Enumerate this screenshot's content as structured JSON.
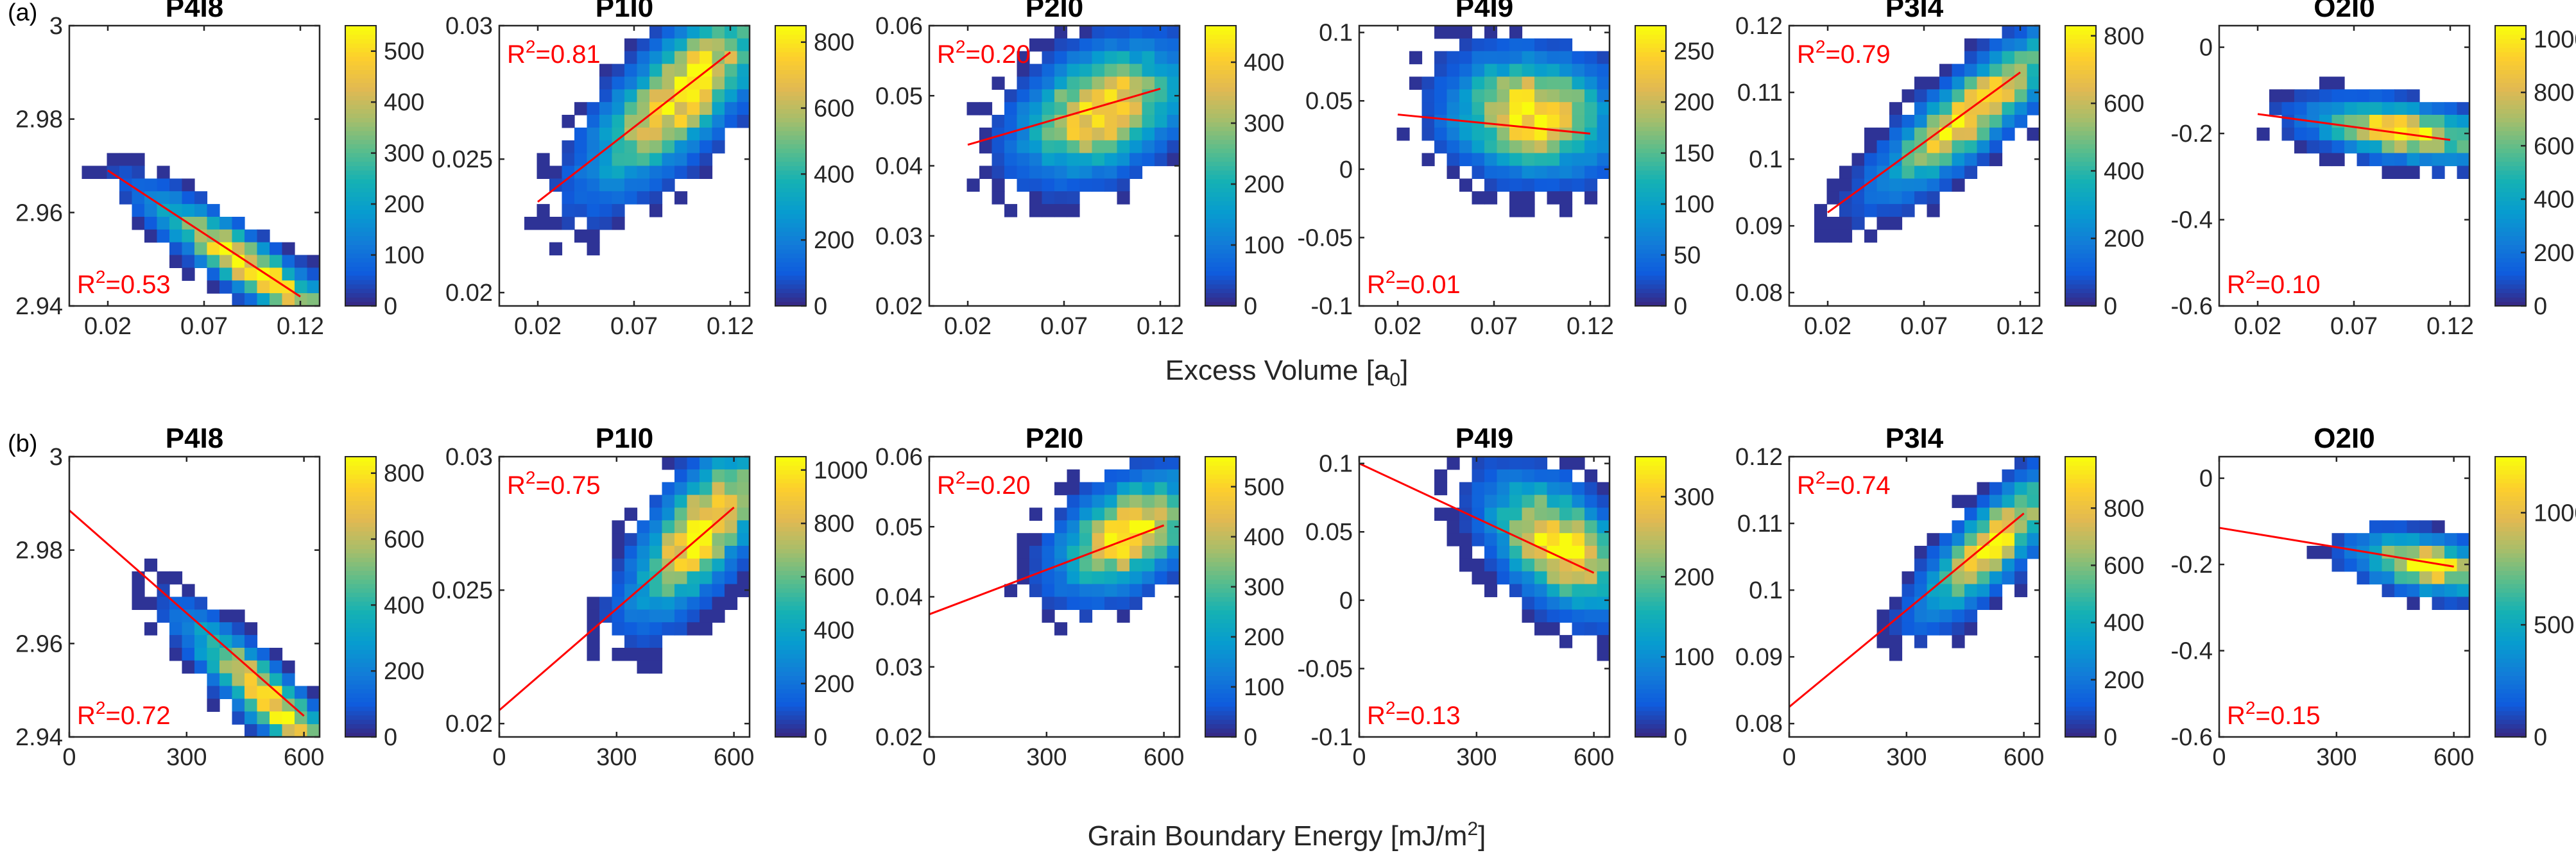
{
  "panel_labels": [
    "(a)",
    "(b)"
  ],
  "rows": [
    {
      "xlabel": "Excess Volume [a",
      "xlabel_sub": "0",
      "xlabel_tail": "]",
      "xlim": [
        0.0,
        0.13
      ],
      "xticks": [
        0.02,
        0.07,
        0.12
      ],
      "xtick_labels": [
        "0.02",
        "0.07",
        "0.12"
      ]
    },
    {
      "xlabel": "Grain Boundary Energy [mJ/m",
      "xlabel_sup": "2",
      "xlabel_tail": "]",
      "xlim": [
        0,
        640
      ],
      "xticks": [
        0,
        300,
        600
      ],
      "xtick_labels": [
        "0",
        "300",
        "600"
      ]
    }
  ],
  "chart_data": [
    {
      "type": "heatmap",
      "row": 0,
      "title": "P4I8",
      "ylim": [
        2.94,
        3.0
      ],
      "yticks": [
        2.94,
        2.96,
        2.98,
        3.0
      ],
      "ytick_labels": [
        "2.94",
        "2.96",
        "2.98",
        "3"
      ],
      "r2_label": "R",
      "r2_value": "=0.53",
      "r2_pos": "bottom-left",
      "colorbar": {
        "max": 550,
        "ticks": [
          0,
          100,
          200,
          300,
          400,
          500
        ],
        "tick_labels": [
          "0",
          "100",
          "200",
          "300",
          "400",
          "500"
        ]
      },
      "fit": {
        "x": [
          0.02,
          0.12
        ],
        "y": [
          2.969,
          2.942
        ]
      },
      "peak": [
        0.095,
        2.948
      ],
      "spread": [
        0.05,
        0.006
      ],
      "slope": -0.27
    },
    {
      "type": "heatmap",
      "row": 0,
      "title": "P1I0",
      "ylim": [
        0.0195,
        0.03
      ],
      "yticks": [
        0.02,
        0.025,
        0.03
      ],
      "ytick_labels": [
        "0.02",
        "0.025",
        "0.03"
      ],
      "r2_label": "R",
      "r2_value": "=0.81",
      "r2_pos": "top-left",
      "colorbar": {
        "max": 850,
        "ticks": [
          0,
          200,
          400,
          600,
          800
        ],
        "tick_labels": [
          "0",
          "200",
          "400",
          "600",
          "800"
        ]
      },
      "fit": {
        "x": [
          0.02,
          0.12
        ],
        "y": [
          0.0234,
          0.029
        ]
      },
      "peak": [
        0.095,
        0.0275
      ],
      "spread": [
        0.045,
        0.0022
      ],
      "slope": 0.056
    },
    {
      "type": "heatmap",
      "row": 0,
      "title": "P2I0",
      "ylim": [
        0.02,
        0.06
      ],
      "yticks": [
        0.02,
        0.03,
        0.04,
        0.05,
        0.06
      ],
      "ytick_labels": [
        "0.02",
        "0.03",
        "0.04",
        "0.05",
        "0.06"
      ],
      "r2_label": "R",
      "r2_value": "=0.20",
      "r2_pos": "top-left",
      "colorbar": {
        "max": 460,
        "ticks": [
          0,
          100,
          200,
          300,
          400
        ],
        "tick_labels": [
          "0",
          "100",
          "200",
          "300",
          "400"
        ]
      },
      "fit": {
        "x": [
          0.02,
          0.12
        ],
        "y": [
          0.043,
          0.051
        ]
      },
      "peak": [
        0.09,
        0.048
      ],
      "spread": [
        0.04,
        0.008
      ],
      "slope": 0.08
    },
    {
      "type": "heatmap",
      "row": 0,
      "title": "P4I9",
      "ylim": [
        -0.1,
        0.105
      ],
      "yticks": [
        -0.1,
        -0.05,
        0.0,
        0.05,
        0.1
      ],
      "ytick_labels": [
        "-0.1",
        "-0.05",
        "0",
        "0.05",
        "0.1"
      ],
      "r2_label": "R",
      "r2_value": "=0.01",
      "r2_pos": "bottom-left",
      "colorbar": {
        "max": 275,
        "ticks": [
          0,
          50,
          100,
          150,
          200,
          250
        ],
        "tick_labels": [
          "0",
          "50",
          "100",
          "150",
          "200",
          "250"
        ]
      },
      "fit": {
        "x": [
          0.02,
          0.12
        ],
        "y": [
          0.04,
          0.026
        ]
      },
      "peak": [
        0.09,
        0.04
      ],
      "spread": [
        0.04,
        0.04
      ],
      "slope": -0.1
    },
    {
      "type": "heatmap",
      "row": 0,
      "title": "P3I4",
      "ylim": [
        0.078,
        0.12
      ],
      "yticks": [
        0.08,
        0.09,
        0.1,
        0.11,
        0.12
      ],
      "ytick_labels": [
        "0.08",
        "0.09",
        "0.1",
        "0.11",
        "0.12"
      ],
      "r2_label": "R",
      "r2_value": "=0.79",
      "r2_pos": "top-left",
      "colorbar": {
        "max": 830,
        "ticks": [
          0,
          200,
          400,
          600,
          800
        ],
        "tick_labels": [
          "0",
          "200",
          "400",
          "600",
          "800"
        ]
      },
      "fit": {
        "x": [
          0.02,
          0.12
        ],
        "y": [
          0.092,
          0.113
        ]
      },
      "peak": [
        0.095,
        0.107
      ],
      "spread": [
        0.045,
        0.006
      ],
      "slope": 0.21
    },
    {
      "type": "heatmap",
      "row": 0,
      "title": "O2I0",
      "ylim": [
        -0.6,
        0.05
      ],
      "yticks": [
        -0.6,
        -0.4,
        -0.2,
        0.0
      ],
      "ytick_labels": [
        "-0.6",
        "-0.4",
        "-0.2",
        "0"
      ],
      "r2_label": "R",
      "r2_value": "=0.10",
      "r2_pos": "bottom-left",
      "colorbar": {
        "max": 1050,
        "ticks": [
          0,
          200,
          400,
          600,
          800,
          1000
        ],
        "tick_labels": [
          "0",
          "200",
          "400",
          "600",
          "800",
          "1000"
        ]
      },
      "fit": {
        "x": [
          0.02,
          0.12
        ],
        "y": [
          -0.155,
          -0.215
        ]
      },
      "peak": [
        0.095,
        -0.195
      ],
      "spread": [
        0.045,
        0.06
      ],
      "slope": -0.6
    },
    {
      "type": "heatmap",
      "row": 1,
      "title": "P4I8",
      "ylim": [
        2.94,
        3.0
      ],
      "yticks": [
        2.94,
        2.96,
        2.98,
        3.0
      ],
      "ytick_labels": [
        "2.94",
        "2.96",
        "2.98",
        "3"
      ],
      "r2_label": "R",
      "r2_value": "=0.72",
      "r2_pos": "bottom-left",
      "colorbar": {
        "max": 850,
        "ticks": [
          0,
          200,
          400,
          600,
          800
        ],
        "tick_labels": [
          "0",
          "200",
          "400",
          "600",
          "800"
        ]
      },
      "fit": {
        "x": [
          0,
          600
        ],
        "y": [
          2.9885,
          2.9445
        ]
      },
      "peak": [
        510,
        2.948
      ],
      "spread": [
        200,
        0.007
      ],
      "slope": -7.33e-05
    },
    {
      "type": "heatmap",
      "row": 1,
      "title": "P1I0",
      "ylim": [
        0.0195,
        0.03
      ],
      "yticks": [
        0.02,
        0.025,
        0.03
      ],
      "ytick_labels": [
        "0.02",
        "0.025",
        "0.03"
      ],
      "r2_label": "R",
      "r2_value": "=0.75",
      "r2_pos": "top-left",
      "colorbar": {
        "max": 1050,
        "ticks": [
          0,
          200,
          400,
          600,
          800,
          1000
        ],
        "tick_labels": [
          "0",
          "200",
          "400",
          "600",
          "800",
          "1000"
        ]
      },
      "fit": {
        "x": [
          0,
          600
        ],
        "y": [
          0.0205,
          0.0281
        ]
      },
      "peak": [
        520,
        0.0273
      ],
      "spread": [
        170,
        0.0022
      ],
      "slope": 1.27e-05
    },
    {
      "type": "heatmap",
      "row": 1,
      "title": "P2I0",
      "ylim": [
        0.02,
        0.06
      ],
      "yticks": [
        0.02,
        0.03,
        0.04,
        0.05,
        0.06
      ],
      "ytick_labels": [
        "0.02",
        "0.03",
        "0.04",
        "0.05",
        "0.06"
      ],
      "r2_label": "R",
      "r2_value": "=0.20",
      "r2_pos": "top-left",
      "colorbar": {
        "max": 560,
        "ticks": [
          0,
          100,
          200,
          300,
          400,
          500
        ],
        "tick_labels": [
          "0",
          "100",
          "200",
          "300",
          "400",
          "500"
        ]
      },
      "fit": {
        "x": [
          0,
          600
        ],
        "y": [
          0.0375,
          0.0502
        ]
      },
      "peak": [
        510,
        0.049
      ],
      "spread": [
        170,
        0.007
      ],
      "slope": 2.1e-05
    },
    {
      "type": "heatmap",
      "row": 1,
      "title": "P4I9",
      "ylim": [
        -0.1,
        0.105
      ],
      "yticks": [
        -0.1,
        -0.05,
        0.0,
        0.05,
        0.1
      ],
      "ytick_labels": [
        "-0.1",
        "-0.05",
        "0",
        "0.05",
        "0.1"
      ],
      "r2_label": "R",
      "r2_value": "=0.13",
      "r2_pos": "bottom-left",
      "colorbar": {
        "max": 350,
        "ticks": [
          0,
          100,
          200,
          300
        ],
        "tick_labels": [
          "0",
          "100",
          "200",
          "300"
        ]
      },
      "fit": {
        "x": [
          0,
          600
        ],
        "y": [
          0.1,
          0.02
        ]
      },
      "peak": [
        510,
        0.04
      ],
      "spread": [
        170,
        0.04
      ],
      "slope": -0.00013
    },
    {
      "type": "heatmap",
      "row": 1,
      "title": "P3I4",
      "ylim": [
        0.078,
        0.12
      ],
      "yticks": [
        0.08,
        0.09,
        0.1,
        0.11,
        0.12
      ],
      "ytick_labels": [
        "0.08",
        "0.09",
        "0.1",
        "0.11",
        "0.12"
      ],
      "r2_label": "R",
      "r2_value": "=0.74",
      "r2_pos": "top-left",
      "colorbar": {
        "max": 980,
        "ticks": [
          0,
          200,
          400,
          600,
          800
        ],
        "tick_labels": [
          "0",
          "200",
          "400",
          "600",
          "800"
        ]
      },
      "fit": {
        "x": [
          0,
          600
        ],
        "y": [
          0.0825,
          0.1115
        ]
      },
      "peak": [
        520,
        0.107
      ],
      "spread": [
        170,
        0.006
      ],
      "slope": 4.8e-05
    },
    {
      "type": "heatmap",
      "row": 1,
      "title": "O2I0",
      "ylim": [
        -0.6,
        0.05
      ],
      "yticks": [
        -0.6,
        -0.4,
        -0.2,
        0.0
      ],
      "ytick_labels": [
        "-0.6",
        "-0.4",
        "-0.2",
        "0"
      ],
      "r2_label": "R",
      "r2_value": "=0.15",
      "r2_pos": "bottom-left",
      "colorbar": {
        "max": 1250,
        "ticks": [
          0,
          500,
          1000
        ],
        "tick_labels": [
          "0",
          "500",
          "1000"
        ]
      },
      "fit": {
        "x": [
          0,
          600
        ],
        "y": [
          -0.115,
          -0.205
        ]
      },
      "peak": [
        530,
        -0.2
      ],
      "spread": [
        170,
        0.06
      ],
      "slope": -0.00015
    }
  ]
}
